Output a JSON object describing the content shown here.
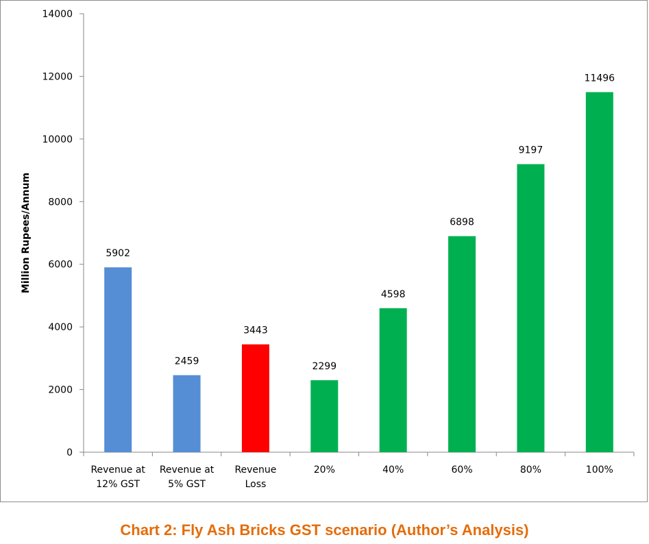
{
  "caption": "Chart 2: Fly Ash Bricks GST scenario (Author’s Analysis)",
  "caption_color": "#e46c0a",
  "chart_data": {
    "type": "bar",
    "categories": [
      [
        "Revenue at",
        "12% GST"
      ],
      [
        "Revenue at",
        "5% GST"
      ],
      [
        "Revenue",
        "Loss"
      ],
      [
        "20%"
      ],
      [
        "40%"
      ],
      [
        "60%"
      ],
      [
        "80%"
      ],
      [
        "100%"
      ]
    ],
    "values": [
      5902,
      2459,
      3443,
      2299,
      4598,
      6898,
      9197,
      11496
    ],
    "data_labels": [
      "5902",
      "2459",
      "3443",
      "2299",
      "4598",
      "6898",
      "9197",
      "11496"
    ],
    "bar_colors": [
      "#558ed5",
      "#558ed5",
      "#ff0000",
      "#00b050",
      "#00b050",
      "#00b050",
      "#00b050",
      "#00b050"
    ],
    "ylabel": "Million Rupees/Annum",
    "ylim": [
      0,
      14000
    ],
    "yticks": [
      0,
      2000,
      4000,
      6000,
      8000,
      10000,
      12000,
      14000
    ],
    "grid": false,
    "legend": "none"
  }
}
